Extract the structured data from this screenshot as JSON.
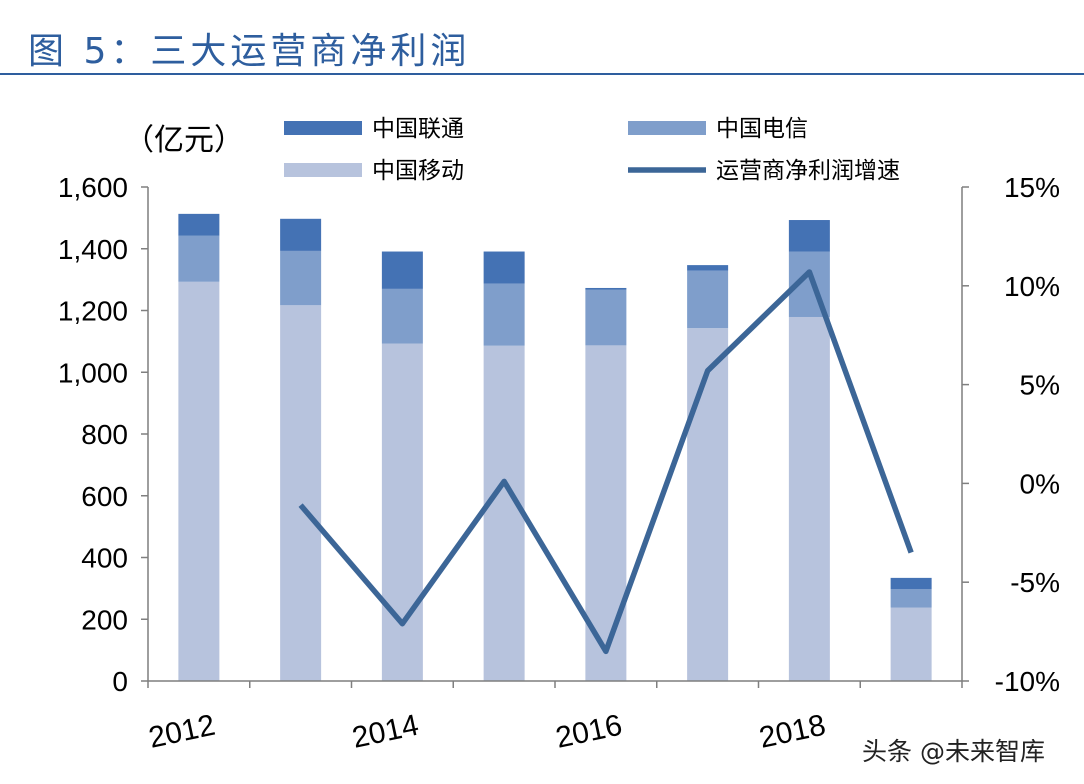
{
  "figure_title": "图 5：三大运营商净利润",
  "watermark": "头条 @未来智库",
  "colors": {
    "title": "#2E5E9E",
    "unicom": "#4472B4",
    "telecom": "#7F9ECB",
    "mobile": "#B7C3DD",
    "growth_line": "#3C6697",
    "axis": "#7F7F7F"
  },
  "chart_data": {
    "type": "bar",
    "stacked": true,
    "title": "",
    "unit_label": "（亿元）",
    "x": [
      2012,
      2013,
      2014,
      2015,
      2016,
      2017,
      2018,
      2019
    ],
    "x_tick_labels": [
      "2012",
      "2014",
      "2016",
      "2018"
    ],
    "x_tick_values": [
      2012,
      2014,
      2016,
      2018
    ],
    "ylim": [
      0,
      1600
    ],
    "y_ticks": [
      "0",
      "200",
      "400",
      "600",
      "800",
      "1,000",
      "1,200",
      "1,400",
      "1,600"
    ],
    "y_tick_values": [
      0,
      200,
      400,
      600,
      800,
      1000,
      1200,
      1400,
      1600
    ],
    "y2lim": [
      -10,
      15
    ],
    "y2_ticks": [
      "-10%",
      "-5%",
      "0%",
      "5%",
      "10%",
      "15%"
    ],
    "y2_tick_values": [
      -10,
      -5,
      0,
      5,
      10,
      15
    ],
    "grid": false,
    "legend_position": "top",
    "series": [
      {
        "name": "中国移动",
        "kind": "bar",
        "color_key": "mobile",
        "values": [
          1293,
          1217,
          1093,
          1086,
          1087,
          1143,
          1179,
          238
        ]
      },
      {
        "name": "中国电信",
        "kind": "bar",
        "color_key": "telecom",
        "values": [
          149,
          176,
          177,
          201,
          180,
          186,
          212,
          60
        ]
      },
      {
        "name": "中国联通",
        "kind": "bar",
        "color_key": "unicom",
        "values": [
          71,
          104,
          121,
          104,
          6,
          18,
          102,
          36
        ]
      },
      {
        "name": "运营商净利润增速",
        "kind": "line",
        "axis": "right",
        "color_key": "growth_line",
        "values": [
          null,
          -1.1,
          -7.1,
          0.1,
          -8.5,
          5.7,
          10.7,
          -3.5
        ]
      }
    ],
    "legend": [
      {
        "label": "中国联通",
        "kind": "bar",
        "color_key": "unicom"
      },
      {
        "label": "中国电信",
        "kind": "bar",
        "color_key": "telecom"
      },
      {
        "label": "中国移动",
        "kind": "bar",
        "color_key": "mobile"
      },
      {
        "label": "运营商净利润增速",
        "kind": "line",
        "color_key": "growth_line"
      }
    ]
  }
}
